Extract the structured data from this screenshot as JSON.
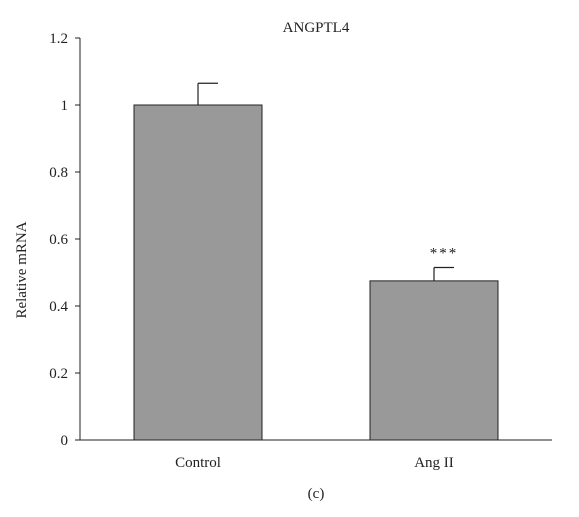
{
  "chart_data": {
    "type": "bar",
    "title": "ANGPTL4",
    "ylabel": "Relative mRNA",
    "xlabel": "",
    "categories": [
      "Control",
      "Ang II"
    ],
    "values": [
      1.0,
      0.475
    ],
    "errors": [
      0.065,
      0.04
    ],
    "annotations": [
      "",
      "***"
    ],
    "ylim": [
      0,
      1.2
    ],
    "yticks": [
      0,
      0.2,
      0.4,
      0.6,
      0.8,
      1,
      1.2
    ],
    "grid": false,
    "legend": "none",
    "bar_color": "#999999",
    "bar_edge_color": "#222222",
    "panel_label": "(c)"
  }
}
